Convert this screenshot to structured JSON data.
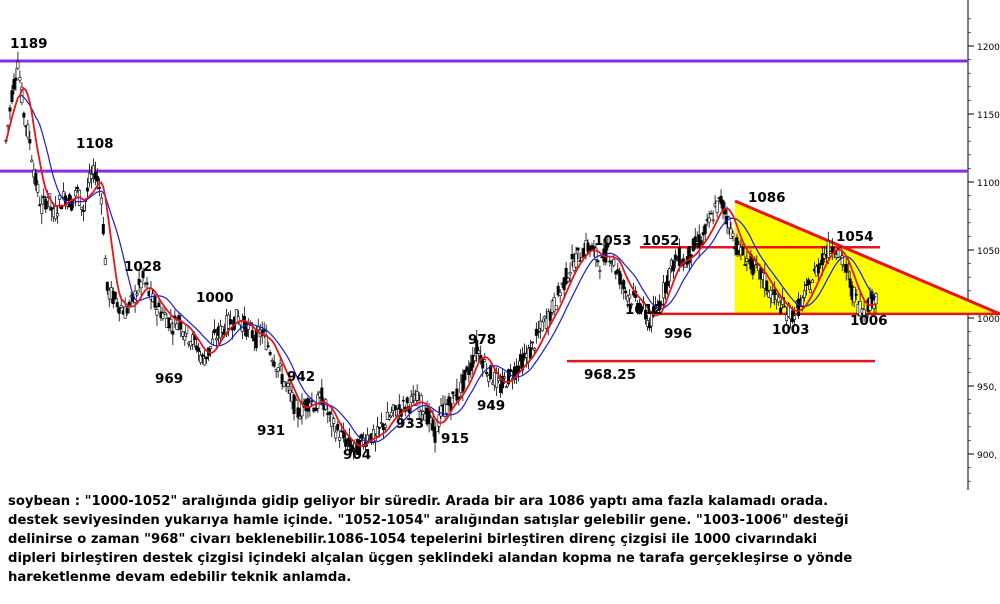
{
  "chart_data": {
    "type": "candlestick-line",
    "y_axis": {
      "range": [
        875,
        1230
      ],
      "ticks": [
        "1200,",
        "1150,",
        "1100,",
        "1050,",
        "1000,",
        "950,",
        "900,"
      ],
      "position": "right"
    },
    "colors": {
      "fast_ma": "#e8141b",
      "slow_ma": "#1a1ae6",
      "horizontal_levels": "#8a2be2",
      "triangle_fill": "#ffff00",
      "trendlines": "#e8141b",
      "candles": "#000000"
    },
    "annotations": [
      {
        "text": "1189",
        "value": 1189
      },
      {
        "text": "1108",
        "value": 1108
      },
      {
        "text": "1028",
        "value": 1028
      },
      {
        "text": "1000",
        "value": 1000
      },
      {
        "text": "969",
        "value": 969
      },
      {
        "text": "942",
        "value": 942
      },
      {
        "text": "931",
        "value": 931
      },
      {
        "text": "904",
        "value": 904
      },
      {
        "text": "933",
        "value": 933
      },
      {
        "text": "915",
        "value": 915
      },
      {
        "text": "978",
        "value": 978
      },
      {
        "text": "949",
        "value": 949
      },
      {
        "text": "968.25",
        "value": 968.25
      },
      {
        "text": "1053",
        "value": 1053
      },
      {
        "text": "1052",
        "value": 1052
      },
      {
        "text": "1012",
        "value": 1012
      },
      {
        "text": "996",
        "value": 996
      },
      {
        "text": "1086",
        "value": 1086
      },
      {
        "text": "1003",
        "value": 1003
      },
      {
        "text": "1054",
        "value": 1054
      },
      {
        "text": "1006",
        "value": 1006
      }
    ],
    "support_resistance": [
      {
        "value": 1189,
        "color": "#8a2be2"
      },
      {
        "value": 1108,
        "color": "#8a2be2"
      },
      {
        "value": 1052,
        "color": "#e8141b"
      },
      {
        "value": 1003,
        "color": "#e8141b"
      },
      {
        "value": 968.25,
        "color": "#e8141b"
      }
    ],
    "descending_triangle": {
      "resistance_from": 1086,
      "support": 1003
    },
    "price_path": [
      1130,
      1165,
      1189,
      1150,
      1130,
      1100,
      1080,
      1090,
      1075,
      1085,
      1090,
      1085,
      1093,
      1080,
      1100,
      1108,
      1090,
      1020,
      1015,
      1010,
      1005,
      1010,
      1020,
      1028,
      1018,
      1010,
      1005,
      1000,
      995,
      1000,
      990,
      985,
      980,
      969,
      975,
      985,
      990,
      995,
      998,
      1000,
      995,
      990,
      985,
      990,
      980,
      970,
      960,
      950,
      940,
      930,
      935,
      940,
      935,
      942,
      930,
      920,
      915,
      910,
      905,
      904,
      910,
      915,
      910,
      920,
      925,
      930,
      933,
      935,
      938,
      940,
      935,
      925,
      915,
      930,
      935,
      940,
      945,
      955,
      965,
      978,
      970,
      960,
      955,
      949,
      955,
      960,
      965,
      970,
      975,
      985,
      995,
      1000,
      1010,
      1020,
      1030,
      1040,
      1045,
      1050,
      1053,
      1045,
      1040,
      1052,
      1040,
      1030,
      1020,
      1015,
      1012,
      1005,
      996,
      1005,
      1015,
      1030,
      1040,
      1045,
      1040,
      1050,
      1055,
      1060,
      1070,
      1080,
      1086,
      1075,
      1060,
      1050,
      1045,
      1040,
      1035,
      1030,
      1020,
      1015,
      1010,
      1005,
      1003,
      1008,
      1015,
      1025,
      1035,
      1045,
      1050,
      1054,
      1045,
      1035,
      1020,
      1010,
      1006,
      1012,
      1015
    ]
  },
  "commentary": {
    "line1": "soybean : \"1000-1052\" aralığında gidip geliyor bir süredir. Arada bir ara 1086 yaptı ama fazla kalamadı orada.",
    "line2": "destek seviyesinden yukarıya hamle içinde. \"1052-1054\" aralığından satışlar gelebilir gene. \"1003-1006\" desteği",
    "line3": "delinirse o zaman \"968\" civarı beklenebilir.1086-1054 tepelerini birleştiren direnç çizgisi ile 1000 civarındaki",
    "line4": "dipleri birleştiren destek çizgisi içindeki alçalan üçgen şeklindeki alandan kopma ne tarafa gerçekleşirse o yönde",
    "line5": "hareketlenme devam edebilir teknik anlamda."
  }
}
